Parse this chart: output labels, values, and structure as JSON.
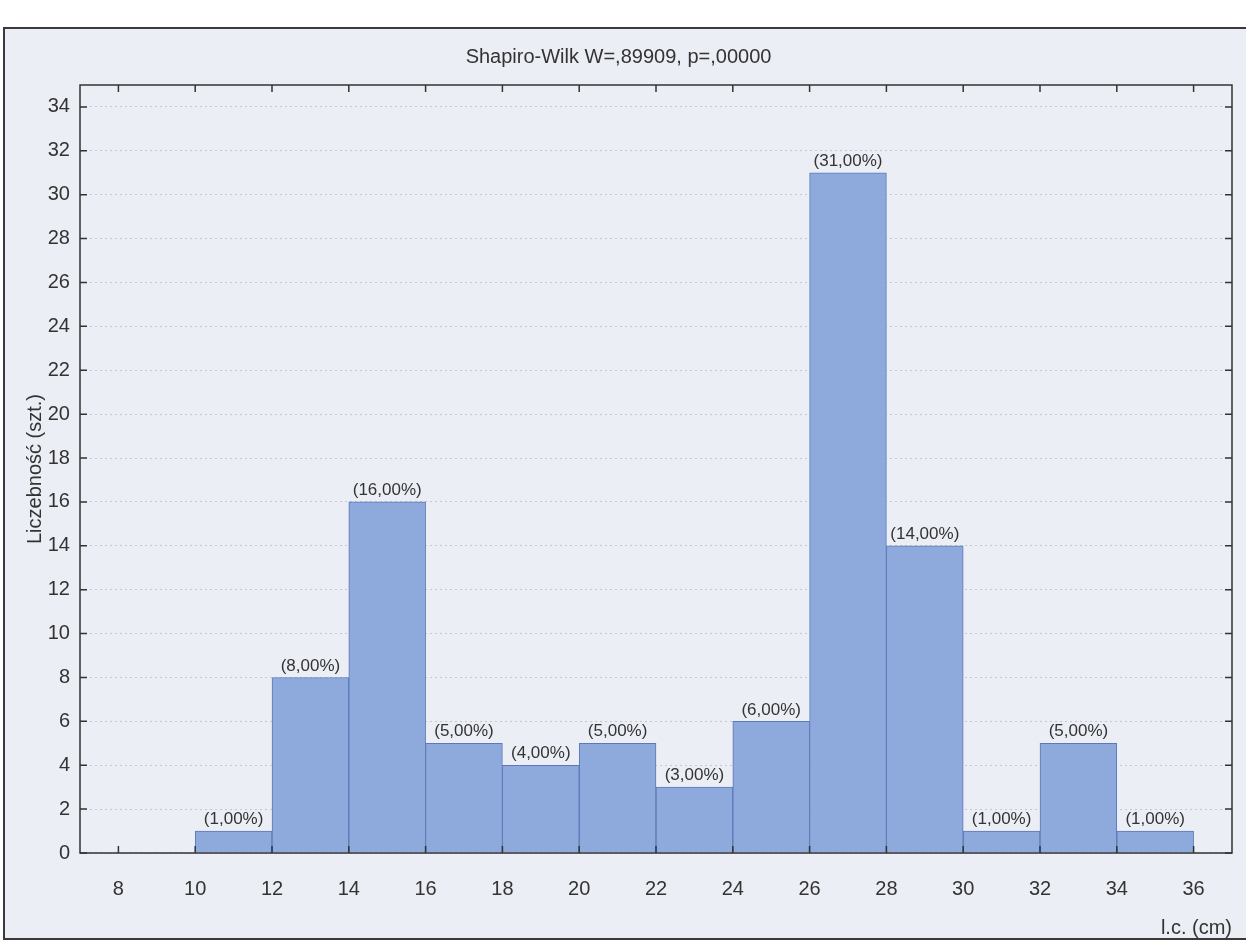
{
  "chart_data": {
    "type": "histogram",
    "title": "Shapiro-Wilk W=,89909, p=,00000",
    "xlabel": "l.c. (cm)",
    "ylabel": "Liczebność (szt.)",
    "bins": [
      10,
      12,
      14,
      16,
      18,
      20,
      22,
      24,
      26,
      28,
      30,
      32,
      34,
      36
    ],
    "values": [
      1,
      8,
      16,
      5,
      4,
      5,
      3,
      6,
      31,
      14,
      1,
      5,
      1
    ],
    "value_labels": [
      "(1,00%)",
      "(8,00%)",
      "(16,00%)",
      "(5,00%)",
      "(4,00%)",
      "(5,00%)",
      "(3,00%)",
      "(6,00%)",
      "(31,00%)",
      "(14,00%)",
      "(1,00%)",
      "(5,00%)",
      "(1,00%)"
    ],
    "color": "#8ea9db",
    "xlim": [
      7,
      37
    ],
    "xticks": [
      8,
      10,
      12,
      14,
      16,
      18,
      20,
      22,
      24,
      26,
      28,
      30,
      32,
      34,
      36
    ],
    "ylim": [
      0,
      35
    ],
    "yticks": [
      0,
      2,
      4,
      6,
      8,
      10,
      12,
      14,
      16,
      18,
      20,
      22,
      24,
      26,
      28,
      30,
      32,
      34
    ],
    "grid": "y",
    "legend": false
  }
}
